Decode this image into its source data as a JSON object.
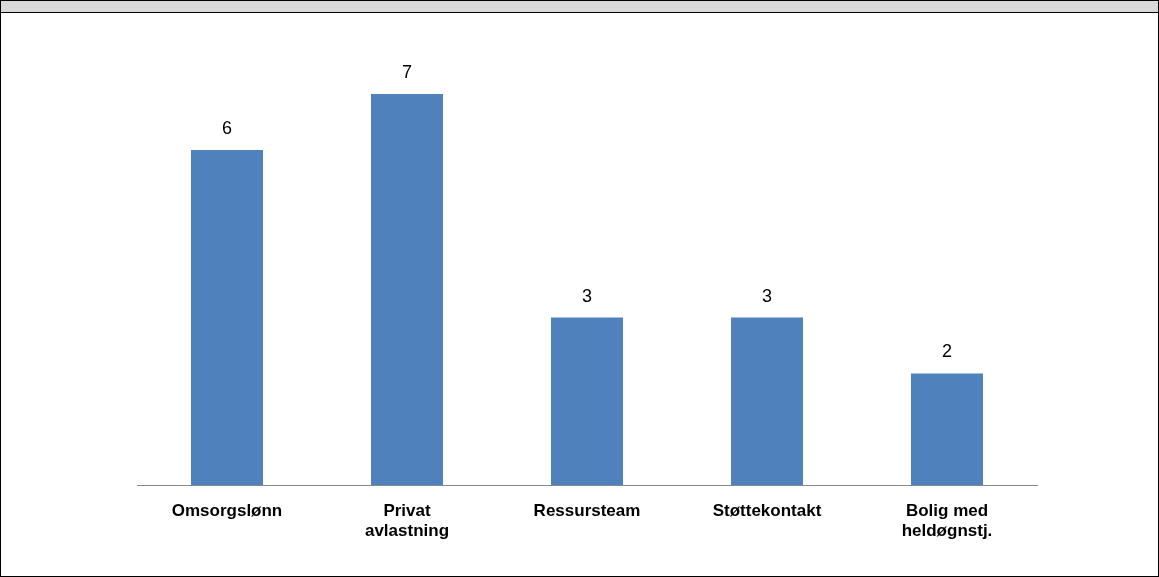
{
  "chart_data": {
    "type": "bar",
    "categories": [
      "Omsorgslønn",
      "Privat avlastning",
      "Ressursteam",
      "Støttekontakt",
      "Bolig med heldøgnstj."
    ],
    "values": [
      6,
      7,
      3,
      3,
      2
    ],
    "color": "#4f81bd",
    "data_labels": true,
    "grid": false,
    "legend": false,
    "tick_labels": "x"
  }
}
